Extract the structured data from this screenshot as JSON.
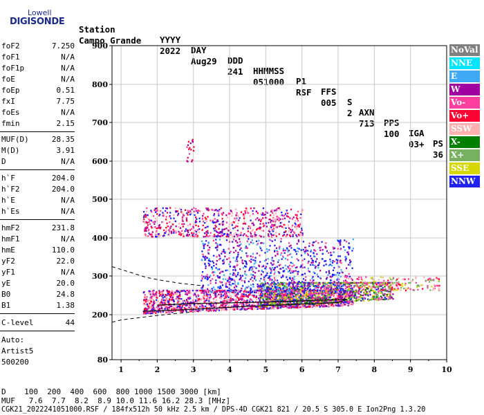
{
  "logo": {
    "top": "Lowell",
    "bottom": "DIGISONDE"
  },
  "header": {
    "row1": [
      "Station",
      "YYYY",
      "DAY",
      "DDD",
      "HHMMSS",
      "P1",
      "FFS",
      "S",
      "AXN",
      "PPS",
      "IGA",
      "PS"
    ],
    "row2": [
      "Campo Grande",
      "2022",
      "Aug29",
      "241",
      "051000",
      "RSF",
      "005",
      "2",
      "713",
      "100",
      "03+",
      "36"
    ]
  },
  "params_group1": [
    {
      "name": "foF2",
      "value": "7.250"
    },
    {
      "name": "foF1",
      "value": "N/A"
    },
    {
      "name": "foF1p",
      "value": "N/A"
    },
    {
      "name": "foE",
      "value": "N/A"
    },
    {
      "name": "foEp",
      "value": "0.51"
    },
    {
      "name": "fxI",
      "value": "7.75"
    },
    {
      "name": "foEs",
      "value": "N/A"
    },
    {
      "name": "fmin",
      "value": "2.15"
    }
  ],
  "params_group2": [
    {
      "name": "MUF(D)",
      "value": "28.35"
    },
    {
      "name": "M(D)",
      "value": "3.91"
    },
    {
      "name": "D",
      "value": "N/A"
    }
  ],
  "params_group3": [
    {
      "name": "h`F",
      "value": "204.0"
    },
    {
      "name": "h`F2",
      "value": "204.0"
    },
    {
      "name": "h`E",
      "value": "N/A"
    },
    {
      "name": "h`Es",
      "value": "N/A"
    }
  ],
  "params_group4": [
    {
      "name": "hmF2",
      "value": "231.8"
    },
    {
      "name": "hmF1",
      "value": "N/A"
    },
    {
      "name": "hmE",
      "value": "110.0"
    },
    {
      "name": "yF2",
      "value": "22.0"
    },
    {
      "name": "yF1",
      "value": "N/A"
    },
    {
      "name": "yE",
      "value": "20.0"
    },
    {
      "name": "B0",
      "value": "24.8"
    },
    {
      "name": "B1",
      "value": "1.38"
    }
  ],
  "clevel": {
    "name": "C-level",
    "value": "44"
  },
  "auto": {
    "line1": "Auto:",
    "line2": "Artist5",
    "line3": "500200"
  },
  "legend": [
    {
      "label": "NoVal",
      "bg": "#808080",
      "fg": "#ffffff"
    },
    {
      "label": "NNE",
      "bg": "#00e5ff",
      "fg": "#ffffff"
    },
    {
      "label": "E",
      "bg": "#3fa9f5",
      "fg": "#ffffff"
    },
    {
      "label": "W",
      "bg": "#a000a0",
      "fg": "#ffffff"
    },
    {
      "label": "Vo-",
      "bg": "#ff3fa0",
      "fg": "#ffffff"
    },
    {
      "label": "Vo+",
      "bg": "#ff0033",
      "fg": "#ffffff"
    },
    {
      "label": "SSW",
      "bg": "#ffb0b0",
      "fg": "#ffffff"
    },
    {
      "label": "X-",
      "bg": "#007f00",
      "fg": "#ffffff"
    },
    {
      "label": "X+",
      "bg": "#77b060",
      "fg": "#ffffff"
    },
    {
      "label": "SSE",
      "bg": "#d6d600",
      "fg": "#ffffff"
    },
    {
      "label": "NNW",
      "bg": "#2222ee",
      "fg": "#ffffff"
    }
  ],
  "bottom": {
    "d_row": "D    100  200  400  600  800 1000 1500 3000 [km]",
    "muf_row": "MUF   7.6  7.7  8.2  8.9 10.0 11.6 16.2 28.3 [MHz]",
    "file_row": "CGK21_2022241051000.RSF / 184fx512h 50 kHz 2.5 km / DPS-4D CGK21 821 / 20.5 S 305.0 E Ion2Png 1.3.20"
  },
  "chart_data": {
    "type": "scatter",
    "xlim": [
      0.75,
      10.0
    ],
    "ylim": [
      80,
      900
    ],
    "xticks": [
      "1",
      "2",
      "3",
      "4",
      "5",
      "6",
      "7",
      "8",
      "9",
      "10"
    ],
    "yticks": [
      "80",
      "200",
      "300",
      "400",
      "500",
      "600",
      "700",
      "800",
      "900"
    ],
    "grid": true,
    "trace_solid": {
      "x": [
        1.6,
        2.0,
        2.5,
        3.0,
        3.5,
        4.0,
        4.5,
        5.0,
        5.5,
        6.0,
        6.5,
        7.0,
        7.25,
        7.1,
        6.0,
        5.0,
        4.0,
        3.0,
        2.5,
        2.0
      ],
      "y": [
        209,
        210,
        212,
        214,
        217,
        219,
        222,
        224,
        226,
        228,
        229,
        232,
        240,
        240,
        236,
        233,
        231,
        229,
        227,
        225
      ]
    },
    "trace_dashed_lower": {
      "x": [
        0.75,
        1.0,
        1.5,
        2.0,
        2.5,
        3.0
      ],
      "y": [
        180,
        186,
        192,
        198,
        203,
        207
      ]
    },
    "trace_dashed_upper": {
      "x": [
        0.75,
        1.2,
        1.7,
        2.2,
        2.7,
        3.2
      ],
      "y": [
        325,
        312,
        297,
        288,
        281,
        276
      ]
    },
    "clusters": [
      {
        "x": [
          1.6,
          7.4
        ],
        "y": [
          205,
          265
        ],
        "n": 1800,
        "colors": [
          "#ff3fa0",
          "#ff0033",
          "#a000a0",
          "#2222ee",
          "#ffb0b0"
        ]
      },
      {
        "x": [
          4.8,
          8.5
        ],
        "y": [
          220,
          285
        ],
        "n": 1200,
        "colors": [
          "#007f00",
          "#77b060",
          "#ff3fa0",
          "#2222ee",
          "#d6d600",
          "#a000a0"
        ]
      },
      {
        "x": [
          3.2,
          7.4
        ],
        "y": [
          260,
          400
        ],
        "n": 900,
        "colors": [
          "#2222ee",
          "#2222ee",
          "#ff3fa0",
          "#a000a0",
          "#3fa9f5"
        ]
      },
      {
        "x": [
          7.2,
          9.8
        ],
        "y": [
          265,
          300
        ],
        "n": 180,
        "colors": [
          "#ffb0b0",
          "#ff3fa0",
          "#d6d600",
          "#77b060",
          "#ff0033"
        ]
      },
      {
        "x": [
          1.6,
          6.0
        ],
        "y": [
          405,
          480
        ],
        "n": 700,
        "colors": [
          "#ff3fa0",
          "#a000a0",
          "#ff0033",
          "#2222ee",
          "#ffb0b0"
        ]
      },
      {
        "x": [
          2.8,
          3.0
        ],
        "y": [
          600,
          660
        ],
        "n": 18,
        "colors": [
          "#ff3fa0",
          "#a000a0",
          "#ff0033"
        ]
      }
    ]
  }
}
